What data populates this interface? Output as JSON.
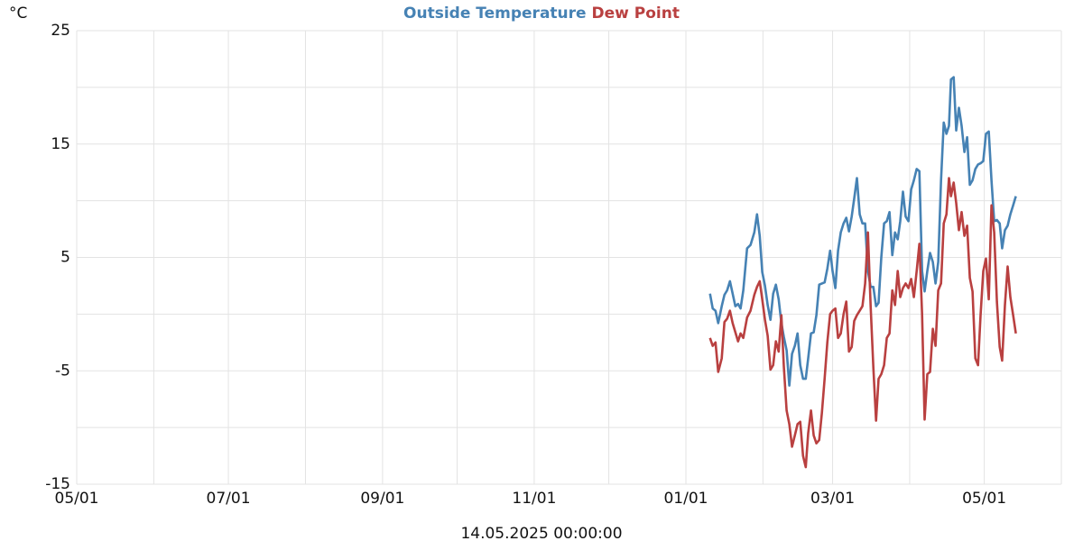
{
  "chart_data": {
    "type": "line",
    "title": "Outside Temperature",
    "y_unit": "°C",
    "x_label": "14.05.2025 00:00:00",
    "xlim": [
      0,
      396
    ],
    "xticks": [
      {
        "value": 0,
        "label": "05/01"
      },
      {
        "value": 61,
        "label": "07/01"
      },
      {
        "value": 123,
        "label": "09/01"
      },
      {
        "value": 184,
        "label": "11/01"
      },
      {
        "value": 245,
        "label": "01/01"
      },
      {
        "value": 304,
        "label": "03/01"
      },
      {
        "value": 365,
        "label": "05/01"
      }
    ],
    "x_minor_grid": [
      31,
      92,
      153,
      214,
      276,
      335,
      396
    ],
    "ylim": [
      -15,
      25
    ],
    "yticks": [
      -15,
      -5,
      5,
      15,
      25
    ],
    "y_minor_grid": [
      -10,
      0,
      10,
      20
    ],
    "grid": true,
    "x": [
      254.7,
      255.8,
      256.9,
      258.0,
      259.4,
      260.5,
      261.6,
      262.7,
      263.8,
      264.9,
      266.0,
      267.0,
      268.1,
      269.6,
      271.0,
      272.5,
      273.6,
      274.7,
      275.7,
      276.8,
      277.9,
      279.0,
      280.1,
      281.2,
      282.3,
      283.4,
      284.4,
      285.5,
      286.6,
      287.7,
      288.8,
      289.9,
      291.0,
      292.1,
      293.2,
      294.2,
      295.3,
      296.4,
      297.5,
      298.6,
      299.7,
      300.8,
      301.9,
      303.0,
      304.0,
      305.1,
      306.2,
      307.3,
      308.4,
      309.5,
      310.6,
      311.7,
      312.7,
      313.8,
      314.9,
      316.0,
      317.1,
      318.2,
      319.3,
      320.4,
      321.5,
      322.5,
      323.6,
      324.7,
      325.8,
      326.9,
      328.0,
      329.1,
      330.2,
      331.2,
      332.3,
      333.4,
      334.5,
      335.6,
      336.7,
      337.8,
      338.9,
      340.0,
      341.0,
      342.1,
      343.2,
      344.3,
      345.4,
      346.5,
      347.6,
      348.7,
      349.8,
      350.8,
      351.6,
      352.7,
      353.7,
      354.8,
      355.9,
      357.0,
      358.1,
      359.2,
      360.3,
      361.4,
      362.5,
      363.5,
      364.6,
      365.7,
      366.8,
      367.9,
      369.0,
      370.1,
      371.2,
      372.2,
      373.3,
      374.4,
      375.5,
      376.6,
      377.7
    ],
    "series": [
      {
        "name": "Outside Temperature",
        "color": "#4682b4",
        "values": [
          1.8,
          0.5,
          0.3,
          -0.8,
          0.7,
          1.7,
          2.1,
          2.9,
          1.8,
          0.7,
          0.9,
          0.5,
          2.1,
          5.8,
          6.1,
          7.2,
          8.8,
          6.9,
          3.7,
          2.5,
          0.8,
          -0.5,
          1.8,
          2.6,
          1.3,
          -0.8,
          -2.0,
          -3.2,
          -6.3,
          -3.5,
          -2.8,
          -1.7,
          -4.5,
          -5.7,
          -5.7,
          -3.9,
          -1.7,
          -1.6,
          -0.1,
          2.6,
          2.7,
          2.8,
          4.0,
          5.6,
          3.8,
          2.3,
          5.6,
          7.2,
          8.0,
          8.5,
          7.3,
          8.6,
          10.2,
          12.0,
          8.8,
          8.0,
          8.0,
          3.8,
          2.4,
          2.4,
          0.7,
          1.0,
          5.0,
          8.0,
          8.2,
          9.0,
          5.2,
          7.2,
          6.6,
          8.2,
          10.8,
          8.6,
          8.2,
          11.0,
          11.8,
          12.8,
          12.6,
          3.8,
          2.0,
          3.8,
          5.4,
          4.6,
          2.7,
          4.6,
          11.8,
          16.9,
          15.9,
          16.6,
          20.7,
          20.9,
          16.2,
          18.2,
          16.6,
          14.3,
          15.6,
          11.4,
          11.8,
          12.8,
          13.2,
          13.3,
          13.5,
          15.9,
          16.1,
          11.8,
          8.2,
          8.3,
          8.0,
          5.8,
          7.4,
          7.8,
          8.8,
          9.6,
          10.4
        ]
      },
      {
        "name": "Dew Point",
        "color": "#b94040",
        "values": [
          -2.1,
          -2.8,
          -2.5,
          -5.1,
          -3.9,
          -0.7,
          -0.4,
          0.3,
          -0.8,
          -1.6,
          -2.4,
          -1.7,
          -2.1,
          -0.3,
          0.3,
          1.7,
          2.4,
          2.9,
          1.3,
          -0.5,
          -1.9,
          -4.9,
          -4.5,
          -2.4,
          -3.3,
          -0.1,
          -4.6,
          -8.5,
          -9.7,
          -11.7,
          -10.7,
          -9.7,
          -9.5,
          -12.5,
          -13.5,
          -10.5,
          -8.5,
          -10.7,
          -11.4,
          -11.1,
          -8.7,
          -5.7,
          -2.5,
          0.0,
          0.3,
          0.5,
          -2.1,
          -1.7,
          0.0,
          1.1,
          -3.3,
          -2.9,
          -0.6,
          -0.1,
          0.3,
          0.7,
          2.7,
          7.2,
          0.7,
          -4.7,
          -9.4,
          -5.7,
          -5.3,
          -4.5,
          -2.1,
          -1.7,
          2.1,
          0.8,
          3.8,
          1.5,
          2.3,
          2.7,
          2.3,
          3.1,
          1.5,
          3.8,
          6.2,
          0.0,
          -9.3,
          -5.3,
          -5.1,
          -1.3,
          -2.8,
          2.1,
          2.7,
          8.0,
          8.8,
          12.0,
          10.4,
          11.6,
          9.8,
          7.4,
          9.0,
          6.9,
          7.8,
          3.2,
          2.0,
          -3.9,
          -4.5,
          -0.1,
          3.8,
          4.9,
          1.3,
          9.6,
          7.2,
          1.1,
          -2.9,
          -4.1,
          0.8,
          4.2,
          1.5,
          -0.1,
          -1.7
        ]
      }
    ]
  }
}
